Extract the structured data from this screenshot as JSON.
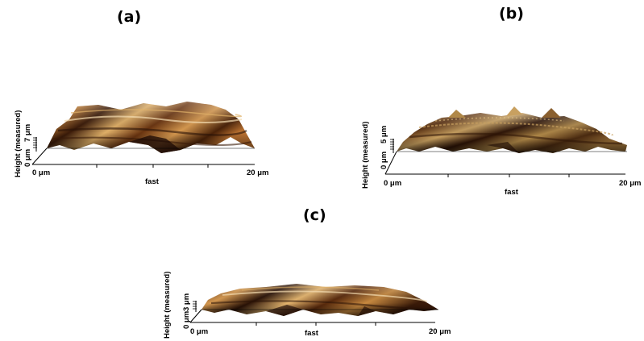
{
  "panels": [
    {
      "label": "(a)",
      "x_axis": {
        "start": "0 μm",
        "end": "20 μm",
        "title": "fast"
      },
      "z_axis": {
        "scale": "7 μm",
        "zero": "0 μm",
        "title": "Height (measured)"
      }
    },
    {
      "label": "(b)",
      "x_axis": {
        "start": "0 μm",
        "end": "20 μm",
        "title": "fast"
      },
      "z_axis": {
        "scale": "5 μm",
        "zero": "0 μm",
        "title": "Height (measured)"
      }
    },
    {
      "label": "(c)",
      "x_axis": {
        "start": "0 μm",
        "end": "20 μm",
        "title": "fast"
      },
      "z_axis": {
        "scale": "3 μm",
        "zero": "0 μm",
        "title": "Height (measured)"
      }
    }
  ],
  "colors": {
    "surface_dark": "#2a1206",
    "surface_mid": "#8a4a14",
    "surface_light": "#e0b068",
    "highlight": "#f4dcb0"
  }
}
